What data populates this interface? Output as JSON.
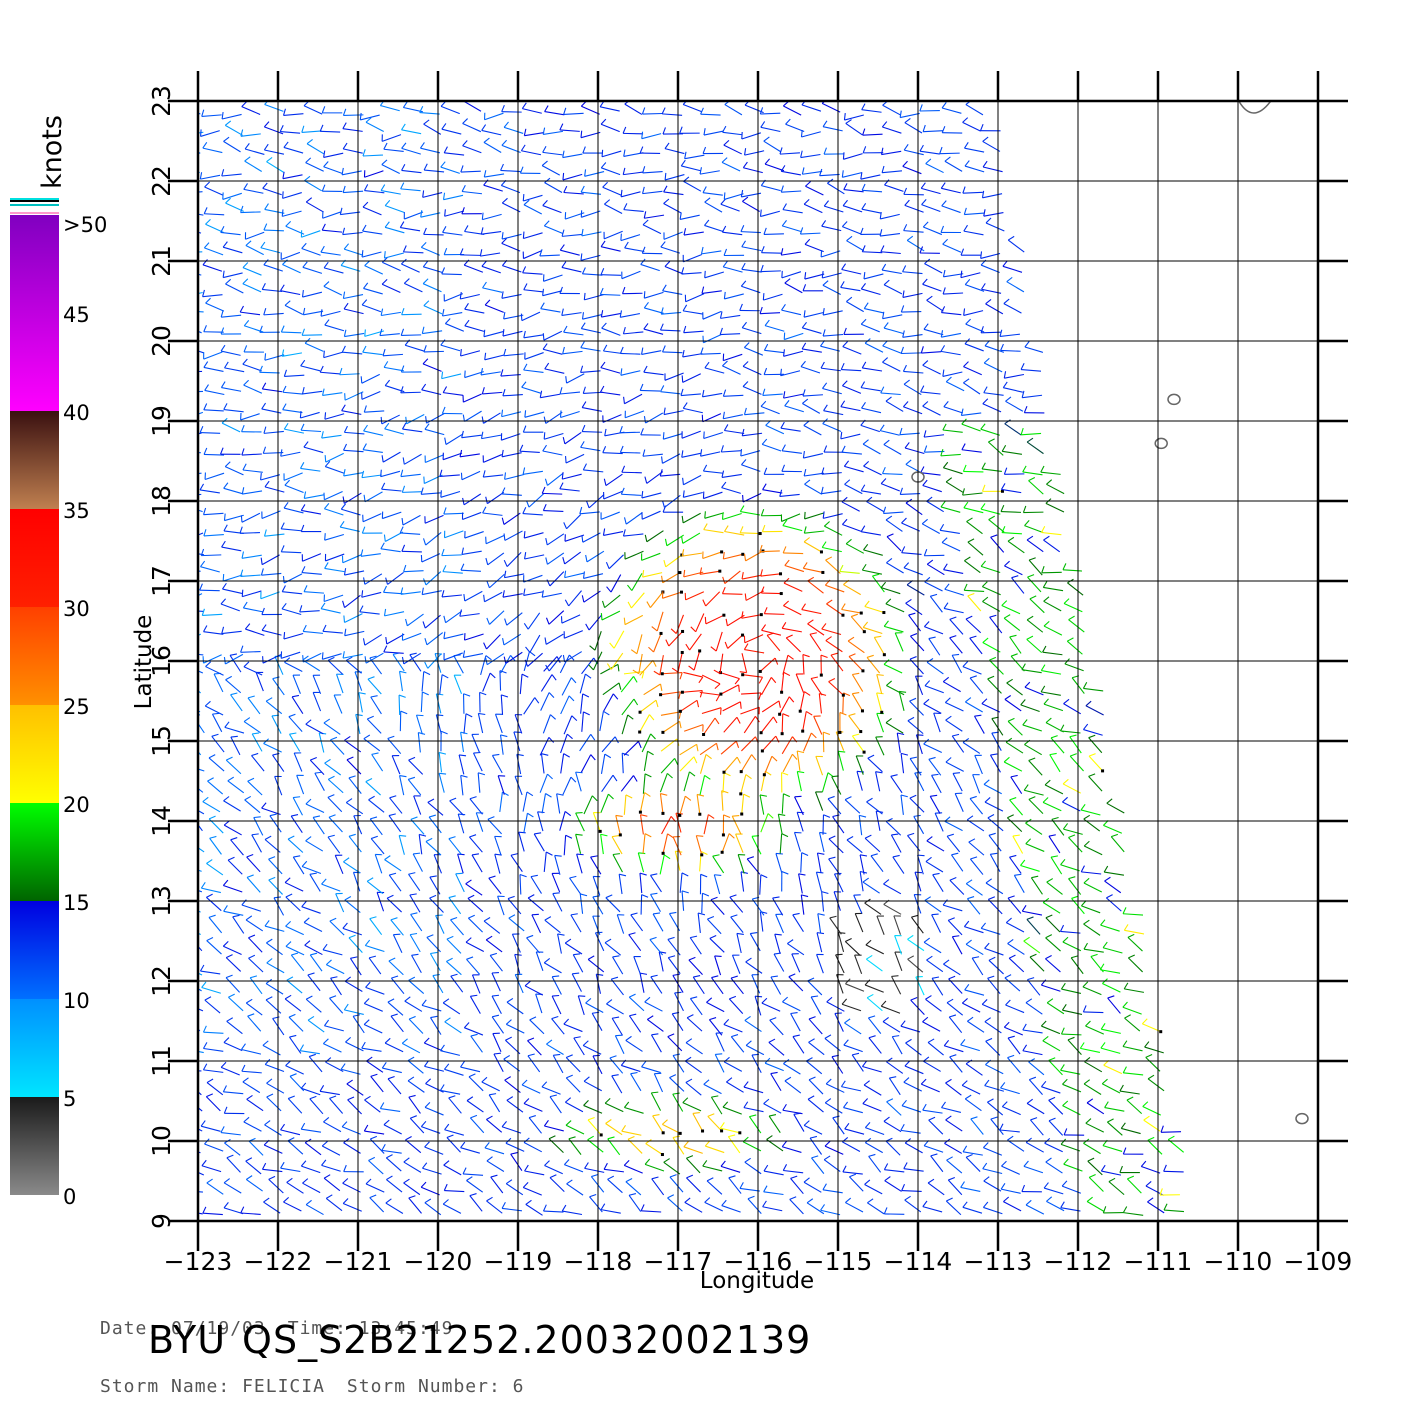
{
  "map": {
    "lon_range": [
      -123,
      -109
    ],
    "lat_range": [
      9,
      23
    ],
    "lon_ticks": [
      -123,
      -122,
      -121,
      -120,
      -119,
      -118,
      -117,
      -116,
      -115,
      -114,
      -113,
      -112,
      -111,
      -110,
      -109
    ],
    "lat_ticks": [
      9,
      10,
      11,
      12,
      13,
      14,
      15,
      16,
      17,
      18,
      19,
      20,
      21,
      22,
      23
    ],
    "xlabel": "Longitude",
    "ylabel": "Latitude",
    "grid": true
  },
  "legend": {
    "title": "knots",
    "labels": [
      ">50",
      "45",
      "40",
      "35",
      "30",
      "25",
      "20",
      "15",
      "10",
      "5",
      "0"
    ],
    "bands": [
      {
        "from": 0,
        "to": 5,
        "colors": [
          "#8a8a8a",
          "#1a1a1a"
        ]
      },
      {
        "from": 5,
        "to": 10,
        "colors": [
          "#00e5ff",
          "#0090ff"
        ]
      },
      {
        "from": 10,
        "to": 15,
        "colors": [
          "#0070ff",
          "#0000e0"
        ]
      },
      {
        "from": 15,
        "to": 20,
        "colors": [
          "#006400",
          "#00ff00"
        ]
      },
      {
        "from": 20,
        "to": 25,
        "colors": [
          "#ffff00",
          "#ffc000"
        ]
      },
      {
        "from": 25,
        "to": 30,
        "colors": [
          "#ff9000",
          "#ff4000"
        ]
      },
      {
        "from": 30,
        "to": 35,
        "colors": [
          "#ff2000",
          "#ff0000"
        ]
      },
      {
        "from": 35,
        "to": 40,
        "colors": [
          "#c08050",
          "#3a1010"
        ]
      },
      {
        "from": 40,
        "to": 50,
        "colors": [
          "#ff00ff",
          "#8000c0"
        ]
      },
      {
        "from": 50,
        "to": 51,
        "colors": [
          "#6020b0",
          "#6020b0"
        ]
      }
    ]
  },
  "swath_edge": {
    "east_lon_at_23": -113.0,
    "east_lon_at_9": -110.5
  },
  "islands": [
    {
      "lon": -114.0,
      "lat": 18.3
    },
    {
      "lon": -110.96,
      "lat": 18.72
    },
    {
      "lon": -110.8,
      "lat": 19.27
    },
    {
      "lon": -109.2,
      "lat": 10.28
    }
  ],
  "wind_features": [
    {
      "name": "cyclone",
      "lon": -116.0,
      "lat": 16.0,
      "max_speed": 33
    },
    {
      "name": "band",
      "lon": -117.0,
      "lat": 13.8,
      "max_speed": 30
    },
    {
      "name": "southern",
      "lon": -117.0,
      "lat": 10.0,
      "max_speed": 24
    }
  ],
  "footer": {
    "date_label": "Date:",
    "date": "07/19/03",
    "time_label": "Time:",
    "time": "13:45:49",
    "storm_name_label": "Storm Name:",
    "storm_name": "FELICIA",
    "storm_number_label": "Storm Number:",
    "storm_number": "6",
    "byu": "BYU",
    "file_id": "QS_S2B21252.20032002139"
  }
}
